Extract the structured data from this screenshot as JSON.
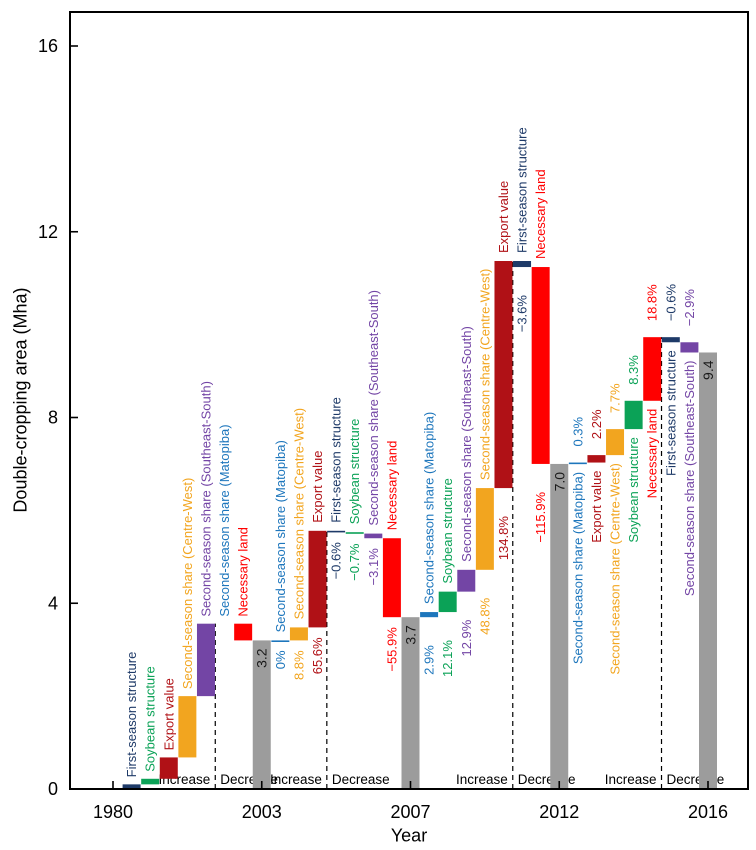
{
  "page": {
    "x_axis_title": "Year",
    "y_axis_title": "Double-cropping area (Mha)"
  },
  "chart_data": {
    "type": "bar",
    "subtype": "waterfall",
    "title": "",
    "xlabel": "Year",
    "ylabel": "Double-cropping area (Mha)",
    "ylim": [
      0,
      16
    ],
    "yticks": [
      0,
      4,
      8,
      12,
      16
    ],
    "xticks": [
      "1980",
      "2003",
      "2007",
      "2012",
      "2016"
    ],
    "grid": false,
    "group_labels": {
      "increase": "Increase",
      "decrease": "Decrease"
    },
    "colors": {
      "First-season structure": "#1e3a68",
      "Soybean structure": "#0ba257",
      "Export value": "#b01116",
      "Second-season share (Centre-West)": "#f2a51f",
      "Second-season share (Southeast-South)": "#7345a5",
      "Second-season share (Matopiba)": "#1d76bc",
      "Necessary land": "#ff0000",
      "total": "#9c9c9c",
      "axis": "#000000"
    },
    "segments": [
      {
        "from_year": "1980",
        "to_year": "2003",
        "name_side": "above",
        "pct_side": "below",
        "name_gap": 7,
        "pct_gap": 10,
        "end_total": 3.2,
        "end_label": "3.2",
        "bars": [
          {
            "series": "First-season structure",
            "group": "increase",
            "start": 0.0,
            "end": 0.1,
            "pct": null
          },
          {
            "series": "Soybean structure",
            "group": "increase",
            "start": 0.1,
            "end": 0.22,
            "pct": null
          },
          {
            "series": "Export value",
            "group": "increase",
            "start": 0.22,
            "end": 0.68,
            "pct": null
          },
          {
            "series": "Second-season share (Centre-West)",
            "group": "increase",
            "start": 0.68,
            "end": 2.0,
            "pct": null
          },
          {
            "series": "Second-season share (Southeast-South)",
            "group": "increase",
            "start": 2.0,
            "end": 3.56,
            "pct": null
          },
          {
            "series": "Second-season share (Matopiba)",
            "group": "decrease",
            "start": 3.56,
            "end": 3.56,
            "pct": null,
            "hidden": true
          },
          {
            "series": "Necessary land",
            "group": "decrease",
            "start": 3.56,
            "end": 3.2,
            "pct": null
          }
        ]
      },
      {
        "from_year": "2003",
        "to_year": "2007",
        "name_side": "above",
        "pct_side": "below",
        "name_gap": 8,
        "pct_gap": 10,
        "end_total": 3.7,
        "end_label": "3.7",
        "bars": [
          {
            "series": "Second-season share (Matopiba)",
            "group": "increase",
            "start": 3.2,
            "end": 3.2,
            "pct": "0%"
          },
          {
            "series": "Second-season share (Centre-West)",
            "group": "increase",
            "start": 3.2,
            "end": 3.48,
            "pct": "8.8%"
          },
          {
            "series": "Export value",
            "group": "increase",
            "start": 3.48,
            "end": 5.56,
            "pct": "65.6%"
          },
          {
            "series": "First-season structure",
            "group": "decrease",
            "start": 5.56,
            "end": 5.53,
            "pct": "−0.6%"
          },
          {
            "series": "Soybean structure",
            "group": "decrease",
            "start": 5.53,
            "end": 5.5,
            "pct": "−0.7%"
          },
          {
            "series": "Second-season share (Southeast-South)",
            "group": "decrease",
            "start": 5.5,
            "end": 5.4,
            "pct": "−3.1%"
          },
          {
            "series": "Necessary land",
            "group": "decrease",
            "start": 5.4,
            "end": 3.7,
            "pct": "−55.9%"
          }
        ]
      },
      {
        "from_year": "2007",
        "to_year": "2012",
        "name_side": "above",
        "pct_side": "below",
        "name_gap": 8,
        "pct_gap": 28,
        "end_total": 7.0,
        "end_label": "7.0",
        "bars": [
          {
            "series": "Second-season share (Matopiba)",
            "group": "increase",
            "start": 3.7,
            "end": 3.81,
            "pct": "2.9%"
          },
          {
            "series": "Soybean structure",
            "group": "increase",
            "start": 3.81,
            "end": 4.25,
            "pct": "12.1%"
          },
          {
            "series": "Second-season share (Southeast-South)",
            "group": "increase",
            "start": 4.25,
            "end": 4.72,
            "pct": "12.9%"
          },
          {
            "series": "Second-season share (Centre-West)",
            "group": "increase",
            "start": 4.72,
            "end": 6.48,
            "pct": "48.8%"
          },
          {
            "series": "Export value",
            "group": "increase",
            "start": 6.48,
            "end": 11.37,
            "pct": "134.8%"
          },
          {
            "series": "First-season structure",
            "group": "decrease",
            "start": 11.37,
            "end": 11.24,
            "pct": "−3.6%"
          },
          {
            "series": "Necessary land",
            "group": "decrease",
            "start": 11.24,
            "end": 7.0,
            "pct": "−115.9%"
          }
        ]
      },
      {
        "from_year": "2012",
        "to_year": "2016",
        "name_side": "below",
        "pct_side": "above",
        "name_gap": 8,
        "pct_gap": 16,
        "end_total": 9.4,
        "end_label": "9.4",
        "bars": [
          {
            "series": "Second-season share (Matopiba)",
            "group": "increase",
            "start": 7.0,
            "end": 7.03,
            "pct": "0.3%"
          },
          {
            "series": "Export value",
            "group": "increase",
            "start": 7.03,
            "end": 7.19,
            "pct": "2.2%"
          },
          {
            "series": "Second-season share (Centre-West)",
            "group": "increase",
            "start": 7.19,
            "end": 7.75,
            "pct": "7.7%"
          },
          {
            "series": "Soybean structure",
            "group": "increase",
            "start": 7.75,
            "end": 8.36,
            "pct": "8.3%"
          },
          {
            "series": "Necessary land",
            "group": "increase",
            "start": 8.36,
            "end": 9.73,
            "pct": "18.8%"
          },
          {
            "series": "First-season structure",
            "group": "decrease",
            "start": 9.73,
            "end": 9.62,
            "pct": "−0.6%"
          },
          {
            "series": "Second-season share (Southeast-South)",
            "group": "decrease",
            "start": 9.62,
            "end": 9.4,
            "pct": "−2.9%"
          }
        ]
      }
    ]
  }
}
